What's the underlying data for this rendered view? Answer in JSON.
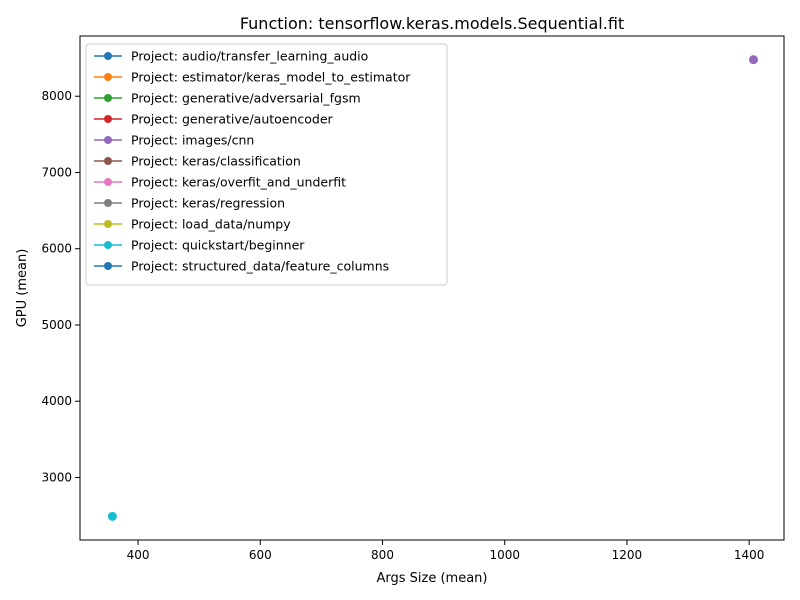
{
  "chart_data": {
    "type": "scatter",
    "title": "Function: tensorflow.keras.models.Sequential.fit",
    "xlabel": "Args Size (mean)",
    "ylabel": "GPU (mean)",
    "xlim": [
      305,
      1457
    ],
    "ylim": [
      2180,
      8790
    ],
    "xticks": [
      400,
      600,
      800,
      1000,
      1200,
      1400
    ],
    "yticks": [
      3000,
      4000,
      5000,
      6000,
      7000,
      8000
    ],
    "grid": false,
    "legend_position": "top-left",
    "series": [
      {
        "name": "Project: audio/transfer_learning_audio",
        "color": "#1f77b4",
        "points": []
      },
      {
        "name": "Project: estimator/keras_model_to_estimator",
        "color": "#ff7f0e",
        "points": []
      },
      {
        "name": "Project: generative/adversarial_fgsm",
        "color": "#2ca02c",
        "points": []
      },
      {
        "name": "Project: generative/autoencoder",
        "color": "#d62728",
        "points": []
      },
      {
        "name": "Project: images/cnn",
        "color": "#9467bd",
        "points": [
          {
            "x": 1407,
            "y": 8480
          }
        ]
      },
      {
        "name": "Project: keras/classification",
        "color": "#8c564b",
        "points": []
      },
      {
        "name": "Project: keras/overfit_and_underfit",
        "color": "#e377c2",
        "points": []
      },
      {
        "name": "Project: keras/regression",
        "color": "#7f7f7f",
        "points": []
      },
      {
        "name": "Project: load_data/numpy",
        "color": "#bcbd22",
        "points": []
      },
      {
        "name": "Project: quickstart/beginner",
        "color": "#17becf",
        "points": [
          {
            "x": 358,
            "y": 2490
          }
        ]
      },
      {
        "name": "Project: structured_data/feature_columns",
        "color": "#1f77b4",
        "points": []
      }
    ]
  }
}
